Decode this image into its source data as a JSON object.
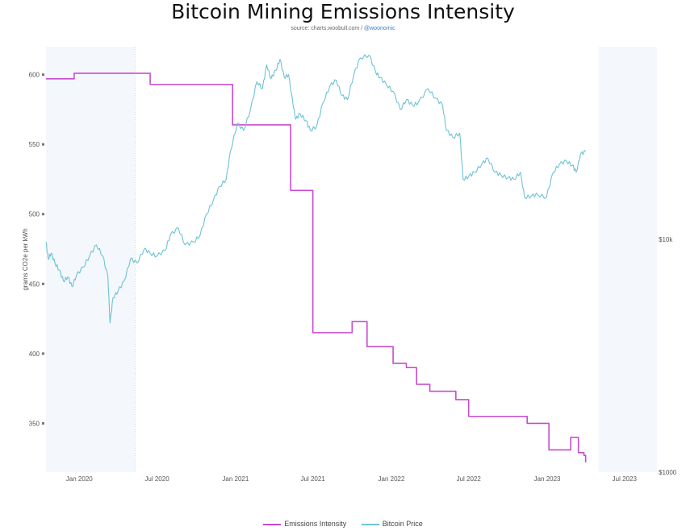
{
  "title": "Bitcoin Mining Emissions Intensity",
  "subtitle_prefix": "source: charts.woobull.com / ",
  "subtitle_handle": "@woonomic",
  "chart_data": {
    "type": "line",
    "title": "Bitcoin Mining Emissions Intensity",
    "ylabel": "grams CO2e per kWh",
    "ylim": [
      315,
      620
    ],
    "yticks": [
      350,
      400,
      450,
      500,
      550,
      600
    ],
    "right_axis_ticks": [
      {
        "label": "$10k",
        "value": 10000
      },
      {
        "label": "$1000",
        "value": 1000
      }
    ],
    "x_ticks": [
      "Jan 2020",
      "Jul 2020",
      "Jan 2021",
      "Jul 2021",
      "Jan 2022",
      "Jul 2022",
      "Jan 2023",
      "Jul 2023"
    ],
    "x_range": [
      "2019-10-15",
      "2023-09-15"
    ],
    "shaded_ranges": [
      [
        "2019-10-15",
        "2020-05-11"
      ],
      [
        "2023-05-01",
        "2023-09-15"
      ]
    ],
    "series": [
      {
        "name": "Emissions Intensity",
        "color": "#c84cd0",
        "step": true,
        "points": [
          [
            "2019-10-15",
            597
          ],
          [
            "2019-12-20",
            601
          ],
          [
            "2020-06-15",
            593
          ],
          [
            "2020-12-25",
            564
          ],
          [
            "2021-05-10",
            517
          ],
          [
            "2021-07-01",
            415
          ],
          [
            "2021-10-01",
            423
          ],
          [
            "2021-11-05",
            405
          ],
          [
            "2022-01-05",
            393
          ],
          [
            "2022-02-05",
            390
          ],
          [
            "2022-03-01",
            378
          ],
          [
            "2022-04-01",
            373
          ],
          [
            "2022-06-01",
            367
          ],
          [
            "2022-07-01",
            355
          ],
          [
            "2022-11-15",
            350
          ],
          [
            "2023-01-05",
            331
          ],
          [
            "2023-02-25",
            340
          ],
          [
            "2023-03-15",
            329
          ],
          [
            "2023-03-28",
            327
          ],
          [
            "2023-04-01",
            322
          ]
        ]
      },
      {
        "name": "Bitcoin Price",
        "color": "#6cc3d5",
        "points": [
          [
            "2019-10-15",
            480
          ],
          [
            "2019-10-20",
            468
          ],
          [
            "2019-10-27",
            472
          ],
          [
            "2019-11-05",
            465
          ],
          [
            "2019-11-15",
            460
          ],
          [
            "2019-11-25",
            452
          ],
          [
            "2019-12-05",
            455
          ],
          [
            "2019-12-15",
            448
          ],
          [
            "2019-12-25",
            456
          ],
          [
            "2020-01-10",
            462
          ],
          [
            "2020-01-25",
            470
          ],
          [
            "2020-02-10",
            478
          ],
          [
            "2020-02-25",
            470
          ],
          [
            "2020-03-08",
            455
          ],
          [
            "2020-03-13",
            422
          ],
          [
            "2020-03-20",
            440
          ],
          [
            "2020-04-01",
            445
          ],
          [
            "2020-04-15",
            452
          ],
          [
            "2020-04-30",
            468
          ],
          [
            "2020-05-15",
            465
          ],
          [
            "2020-06-01",
            475
          ],
          [
            "2020-06-15",
            472
          ],
          [
            "2020-07-01",
            470
          ],
          [
            "2020-07-20",
            474
          ],
          [
            "2020-08-01",
            485
          ],
          [
            "2020-08-20",
            490
          ],
          [
            "2020-09-05",
            478
          ],
          [
            "2020-09-25",
            480
          ],
          [
            "2020-10-10",
            485
          ],
          [
            "2020-10-25",
            500
          ],
          [
            "2020-11-10",
            510
          ],
          [
            "2020-11-25",
            520
          ],
          [
            "2020-12-10",
            525
          ],
          [
            "2020-12-20",
            545
          ],
          [
            "2021-01-05",
            565
          ],
          [
            "2021-01-20",
            560
          ],
          [
            "2021-02-05",
            575
          ],
          [
            "2021-02-20",
            595
          ],
          [
            "2021-03-05",
            590
          ],
          [
            "2021-03-15",
            607
          ],
          [
            "2021-03-25",
            597
          ],
          [
            "2021-04-05",
            603
          ],
          [
            "2021-04-15",
            611
          ],
          [
            "2021-04-25",
            598
          ],
          [
            "2021-05-05",
            600
          ],
          [
            "2021-05-15",
            580
          ],
          [
            "2021-05-22",
            568
          ],
          [
            "2021-06-01",
            572
          ],
          [
            "2021-06-15",
            567
          ],
          [
            "2021-06-25",
            560
          ],
          [
            "2021-07-10",
            563
          ],
          [
            "2021-07-25",
            580
          ],
          [
            "2021-08-10",
            592
          ],
          [
            "2021-08-25",
            596
          ],
          [
            "2021-09-07",
            585
          ],
          [
            "2021-09-20",
            582
          ],
          [
            "2021-10-05",
            600
          ],
          [
            "2021-10-20",
            612
          ],
          [
            "2021-11-10",
            614
          ],
          [
            "2021-11-25",
            602
          ],
          [
            "2021-12-05",
            598
          ],
          [
            "2021-12-20",
            593
          ],
          [
            "2022-01-05",
            588
          ],
          [
            "2022-01-22",
            575
          ],
          [
            "2022-02-05",
            582
          ],
          [
            "2022-02-20",
            578
          ],
          [
            "2022-03-05",
            580
          ],
          [
            "2022-03-28",
            590
          ],
          [
            "2022-04-15",
            583
          ],
          [
            "2022-05-01",
            578
          ],
          [
            "2022-05-10",
            560
          ],
          [
            "2022-05-25",
            555
          ],
          [
            "2022-06-10",
            558
          ],
          [
            "2022-06-18",
            525
          ],
          [
            "2022-07-01",
            527
          ],
          [
            "2022-07-15",
            530
          ],
          [
            "2022-08-01",
            536
          ],
          [
            "2022-08-15",
            540
          ],
          [
            "2022-09-01",
            530
          ],
          [
            "2022-09-15",
            528
          ],
          [
            "2022-10-01",
            526
          ],
          [
            "2022-10-15",
            525
          ],
          [
            "2022-10-30",
            530
          ],
          [
            "2022-11-09",
            512
          ],
          [
            "2022-11-25",
            513
          ],
          [
            "2022-12-10",
            514
          ],
          [
            "2022-12-30",
            512
          ],
          [
            "2023-01-15",
            530
          ],
          [
            "2023-01-30",
            536
          ],
          [
            "2023-02-15",
            538
          ],
          [
            "2023-03-01",
            535
          ],
          [
            "2023-03-10",
            530
          ],
          [
            "2023-03-20",
            543
          ],
          [
            "2023-04-01",
            545
          ]
        ]
      }
    ],
    "legend": [
      "Emissions Intensity",
      "Bitcoin Price"
    ],
    "legend_position": "bottom"
  }
}
